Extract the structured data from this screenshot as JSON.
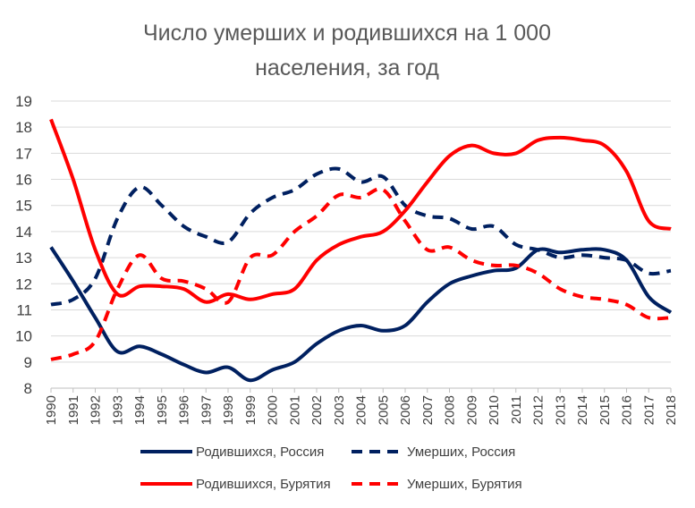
{
  "chart_data": {
    "type": "line",
    "title": "Число умерших и родившихся на 1 000 населения, за год",
    "title_lines": [
      "Число умерших и родившихся на 1 000",
      "населения, за год"
    ],
    "xlabel": "",
    "ylabel": "",
    "x": [
      "1990",
      "1991",
      "1992",
      "1993",
      "1994",
      "1995",
      "1996",
      "1997",
      "1998",
      "1999",
      "2000",
      "2001",
      "2002",
      "2003",
      "2004",
      "2005",
      "2006",
      "2007",
      "2008",
      "2009",
      "2010",
      "2011",
      "2012",
      "2013",
      "2014",
      "2015",
      "2016",
      "2017",
      "2018"
    ],
    "ylim": [
      8,
      19
    ],
    "yticks": [
      "8",
      "9",
      "10",
      "11",
      "12",
      "13",
      "14",
      "15",
      "16",
      "17",
      "18",
      "19"
    ],
    "grid": "horizontal",
    "legend_position": "bottom",
    "series": [
      {
        "name": "Родившихся, Россия",
        "color": "#002060",
        "dash": "solid",
        "values": [
          13.4,
          12.1,
          10.7,
          9.4,
          9.6,
          9.3,
          8.9,
          8.6,
          8.8,
          8.3,
          8.7,
          9.0,
          9.7,
          10.2,
          10.4,
          10.2,
          10.4,
          11.3,
          12.0,
          12.3,
          12.5,
          12.6,
          13.3,
          13.2,
          13.3,
          13.3,
          12.9,
          11.5,
          10.9
        ]
      },
      {
        "name": "Умерших, Россия",
        "color": "#002060",
        "dash": "dashed",
        "values": [
          11.2,
          11.4,
          12.2,
          14.5,
          15.7,
          15.0,
          14.2,
          13.8,
          13.6,
          14.7,
          15.3,
          15.6,
          16.2,
          16.4,
          15.9,
          16.1,
          15.0,
          14.6,
          14.5,
          14.1,
          14.2,
          13.5,
          13.3,
          13.0,
          13.1,
          13.0,
          12.9,
          12.4,
          12.5
        ]
      },
      {
        "name": "Родившихся, Бурятия",
        "color": "#ff0000",
        "dash": "solid",
        "values": [
          18.3,
          16.0,
          13.3,
          11.6,
          11.9,
          11.9,
          11.8,
          11.3,
          11.6,
          11.4,
          11.6,
          11.8,
          12.9,
          13.5,
          13.8,
          14.0,
          14.8,
          15.9,
          16.9,
          17.3,
          17.0,
          17.0,
          17.5,
          17.6,
          17.5,
          17.3,
          16.3,
          14.4,
          14.1
        ]
      },
      {
        "name": "Умерших, Бурятия",
        "color": "#ff0000",
        "dash": "dashed",
        "values": [
          9.1,
          9.3,
          9.8,
          11.8,
          13.1,
          12.2,
          12.1,
          11.8,
          11.3,
          13.0,
          13.1,
          14.0,
          14.6,
          15.4,
          15.3,
          15.6,
          14.4,
          13.3,
          13.4,
          12.9,
          12.7,
          12.7,
          12.4,
          11.8,
          11.5,
          11.4,
          11.2,
          10.7,
          10.7
        ]
      }
    ]
  }
}
